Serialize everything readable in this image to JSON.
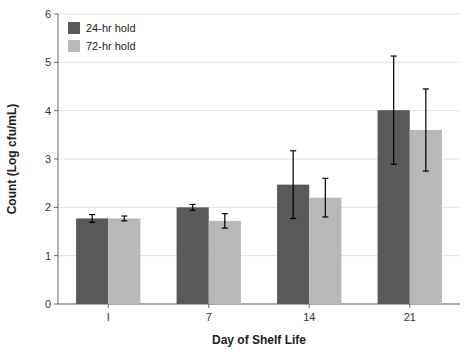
{
  "chart_data": {
    "type": "bar",
    "x_label": "Day of Shelf Life",
    "y_label": "Count (Log cfu/mL)",
    "categories": [
      "I",
      "7",
      "14",
      "21"
    ],
    "series": [
      {
        "name": "24-hr hold",
        "color": "#595959",
        "values": [
          1.77,
          2.0,
          2.47,
          4.01
        ],
        "errors": [
          0.08,
          0.06,
          0.7,
          1.12
        ]
      },
      {
        "name": "72-hr hold",
        "color": "#b8b8b8",
        "values": [
          1.77,
          1.72,
          2.2,
          3.6
        ],
        "errors": [
          0.05,
          0.15,
          0.4,
          0.85
        ]
      }
    ],
    "ylim": [
      0,
      6
    ],
    "yticks": [
      0,
      1,
      2,
      3,
      4,
      5,
      6
    ],
    "grid": true,
    "legend": "upper left"
  }
}
